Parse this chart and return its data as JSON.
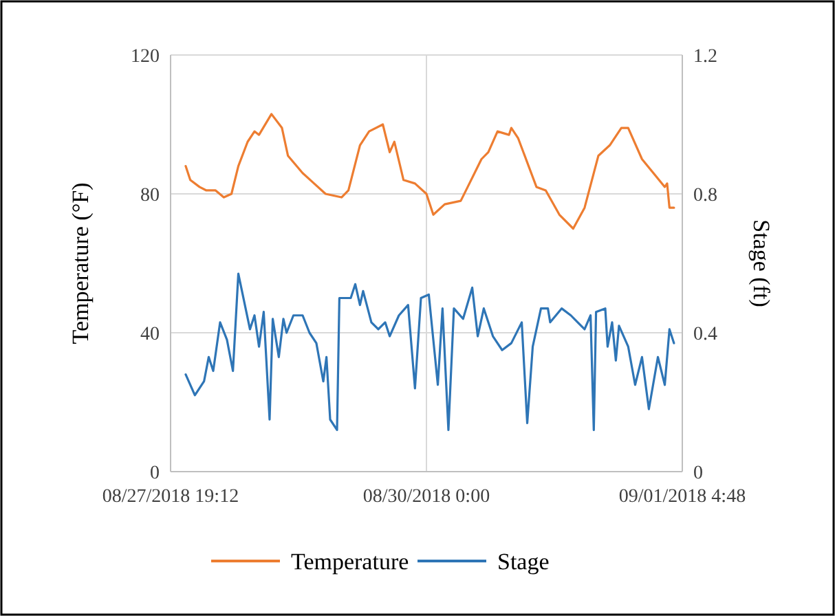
{
  "chart_data": {
    "type": "line",
    "xlabel": null,
    "ylabel": "Temperature (°F)",
    "y2label": "Stage (ft)",
    "xlim": [
      "2018-08-27T19:12",
      "2018-09-01T04:48"
    ],
    "xticks": [
      {
        "value": "2018-08-27T19:12",
        "label": "08/27/2018 19:12"
      },
      {
        "value": "2018-08-30T00:00",
        "label": "08/30/2018 0:00"
      },
      {
        "value": "2018-09-01T04:48",
        "label": "09/01/2018 4:48"
      }
    ],
    "ylim": [
      0,
      120
    ],
    "yticks": [
      0,
      40,
      80,
      120
    ],
    "y2lim": [
      0,
      1.2
    ],
    "y2ticks": [
      0,
      0.4,
      0.8,
      1.2
    ],
    "grid": true,
    "legend": "bottom",
    "marker": "none",
    "line_style": "solid",
    "series": [
      {
        "name": "Temperature",
        "color": "#ed7d31",
        "x": [
          "2018-08-27T22:19",
          "2018-08-27T23:16",
          "2018-08-28T01:10",
          "2018-08-28T02:35",
          "2018-08-28T04:29",
          "2018-08-28T06:11",
          "2018-08-28T07:46",
          "2018-08-28T09:11",
          "2018-08-28T11:06",
          "2018-08-28T12:31",
          "2018-08-28T13:27",
          "2018-08-28T16:01",
          "2018-08-28T18:11",
          "2018-08-28T19:25",
          "2018-08-28T22:27",
          "2018-08-29T00:49",
          "2018-08-29T03:11",
          "2018-08-29T06:29",
          "2018-08-29T07:54",
          "2018-08-29T10:17",
          "2018-08-29T12:10",
          "2018-08-29T15:00",
          "2018-08-29T16:25",
          "2018-08-29T17:23",
          "2018-08-29T19:16",
          "2018-08-29T21:38",
          "2018-08-30T00:00",
          "2018-08-30T01:25",
          "2018-08-30T03:46",
          "2018-08-30T07:05",
          "2018-08-30T08:31",
          "2018-08-30T11:21",
          "2018-08-30T12:46",
          "2018-08-30T14:40",
          "2018-08-30T17:02",
          "2018-08-30T17:31",
          "2018-08-30T18:56",
          "2018-08-30T22:42",
          "2018-08-31T00:37",
          "2018-08-31T03:26",
          "2018-08-31T06:17",
          "2018-08-31T08:38",
          "2018-08-31T11:29",
          "2018-08-31T13:50",
          "2018-08-31T16:13",
          "2018-08-31T17:38",
          "2018-08-31T20:29",
          "2018-09-01T01:11",
          "2018-09-01T01:40",
          "2018-09-01T02:09",
          "2018-09-01T03:05"
        ],
        "values": [
          88,
          84,
          82,
          81,
          81,
          79,
          80,
          88,
          95,
          98,
          97,
          103,
          99,
          91,
          86,
          83,
          80,
          79,
          81,
          94,
          98,
          100,
          92,
          95,
          84,
          83,
          80,
          74,
          77,
          78,
          82,
          90,
          92,
          98,
          97,
          99,
          96,
          82,
          81,
          74,
          70,
          76,
          91,
          94,
          99,
          99,
          90,
          82,
          83,
          76,
          76
        ]
      },
      {
        "name": "Stage",
        "color": "#2e75b6",
        "axis": "y2",
        "x": [
          "2018-08-27T22:19",
          "2018-08-28T00:13",
          "2018-08-28T02:06",
          "2018-08-28T03:04",
          "2018-08-28T04:00",
          "2018-08-28T05:25",
          "2018-08-28T06:50",
          "2018-08-28T08:04",
          "2018-08-28T09:11",
          "2018-08-28T11:35",
          "2018-08-28T12:31",
          "2018-08-28T13:27",
          "2018-08-28T14:25",
          "2018-08-28T15:38",
          "2018-08-28T16:17",
          "2018-08-28T17:32",
          "2018-08-28T18:29",
          "2018-08-28T19:08",
          "2018-08-28T20:33",
          "2018-08-28T22:27",
          "2018-08-28T23:52",
          "2018-08-29T01:17",
          "2018-08-29T02:43",
          "2018-08-29T03:22",
          "2018-08-29T04:08",
          "2018-08-29T05:33",
          "2018-08-29T06:02",
          "2018-08-29T08:23",
          "2018-08-29T09:19",
          "2018-08-29T10:17",
          "2018-08-29T10:56",
          "2018-08-29T12:38",
          "2018-08-29T14:04",
          "2018-08-29T15:29",
          "2018-08-29T16:25",
          "2018-08-29T18:19",
          "2018-08-29T20:13",
          "2018-08-29T21:38",
          "2018-08-29T22:52",
          "2018-08-30T00:29",
          "2018-08-30T02:21",
          "2018-08-30T03:19",
          "2018-08-30T04:32",
          "2018-08-30T05:40",
          "2018-08-30T07:34",
          "2018-08-30T09:27",
          "2018-08-30T10:35",
          "2018-08-30T11:50",
          "2018-08-30T13:43",
          "2018-08-30T15:37",
          "2018-08-30T17:31",
          "2018-08-30T19:40",
          "2018-08-30T20:48",
          "2018-08-30T21:56",
          "2018-08-30T23:38",
          "2018-08-31T01:04",
          "2018-08-31T01:32",
          "2018-08-31T03:54",
          "2018-08-31T05:48",
          "2018-08-31T07:13",
          "2018-08-31T08:38",
          "2018-08-31T09:52",
          "2018-08-31T10:32",
          "2018-08-31T11:00",
          "2018-08-31T12:54",
          "2018-08-31T13:23",
          "2018-08-31T14:19",
          "2018-08-31T15:05",
          "2018-08-31T15:44",
          "2018-08-31T17:38",
          "2018-08-31T19:04",
          "2018-08-31T20:29",
          "2018-08-31T21:54",
          "2018-08-31T23:46",
          "2018-09-01T01:11",
          "2018-09-01T02:09",
          "2018-09-01T03:05"
        ],
        "values": [
          0.28,
          0.22,
          0.26,
          0.33,
          0.29,
          0.43,
          0.38,
          0.29,
          0.57,
          0.41,
          0.45,
          0.36,
          0.46,
          0.15,
          0.44,
          0.33,
          0.44,
          0.4,
          0.45,
          0.45,
          0.4,
          0.37,
          0.26,
          0.33,
          0.15,
          0.12,
          0.5,
          0.5,
          0.54,
          0.48,
          0.52,
          0.43,
          0.41,
          0.43,
          0.39,
          0.45,
          0.48,
          0.24,
          0.5,
          0.51,
          0.25,
          0.47,
          0.12,
          0.47,
          0.44,
          0.53,
          0.39,
          0.47,
          0.39,
          0.35,
          0.37,
          0.43,
          0.14,
          0.36,
          0.47,
          0.47,
          0.43,
          0.47,
          0.45,
          0.43,
          0.41,
          0.45,
          0.12,
          0.46,
          0.47,
          0.36,
          0.43,
          0.32,
          0.42,
          0.36,
          0.25,
          0.33,
          0.18,
          0.33,
          0.25,
          0.41,
          0.37
        ]
      }
    ]
  }
}
